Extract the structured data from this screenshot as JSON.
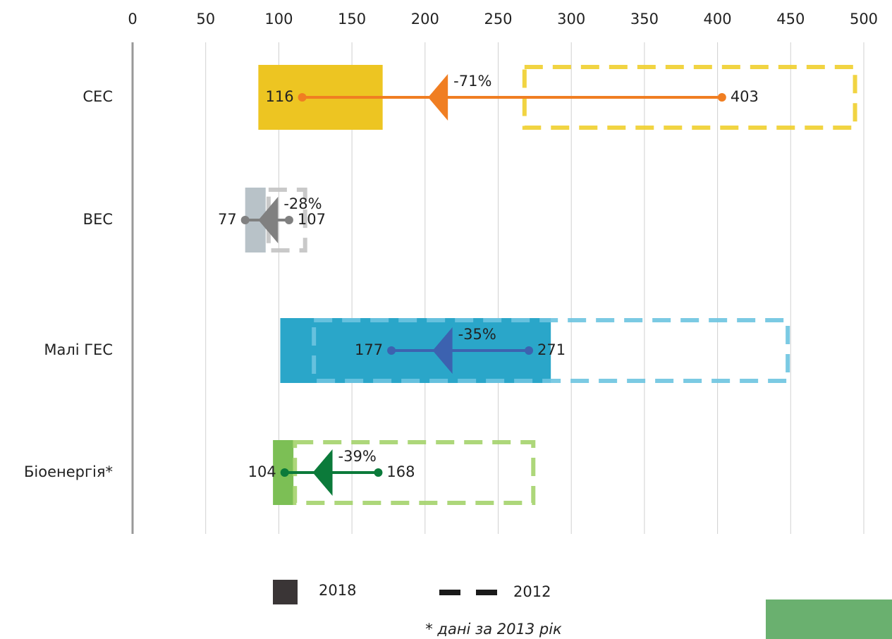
{
  "chart_data": {
    "type": "range-arrow",
    "categories": [
      "СЕС",
      "ВЕС",
      "Малі ГЕС",
      "Біоенергія*"
    ],
    "category_colors": [
      {
        "fill": "#edc522",
        "line": "#f07e22",
        "dash": "#f0cf2e"
      },
      {
        "fill": "#b8c2c8",
        "line": "#808080",
        "dash": "#c3c3c3"
      },
      {
        "fill": "#2aa6c9",
        "line": "#3c62b0",
        "dash": "#6dc4e0"
      },
      {
        "fill": "#7cbf55",
        "line": "#0b7a3a",
        "dash": "#a4d36c"
      }
    ],
    "series": [
      {
        "name": "2018",
        "color": "#3a3536",
        "values": [
          116,
          77,
          177,
          104
        ],
        "ranges": [
          [
            86,
            171
          ],
          [
            77,
            91
          ],
          [
            101,
            286
          ],
          [
            96,
            110
          ]
        ]
      },
      {
        "name": "2012",
        "color": "#1a1a1a",
        "values": [
          403,
          107,
          271,
          168
        ],
        "ranges": [
          [
            268,
            494
          ],
          [
            93,
            118
          ],
          [
            124,
            448
          ],
          [
            111,
            274
          ]
        ]
      }
    ],
    "change_labels": [
      "-71%",
      "-28%",
      "-35%",
      "-39%"
    ],
    "xlim": [
      0,
      500
    ],
    "xticks": [
      0,
      50,
      100,
      150,
      200,
      250,
      300,
      350,
      400,
      450,
      500
    ],
    "grid": true,
    "footnote": "* дані за 2013 рік"
  }
}
